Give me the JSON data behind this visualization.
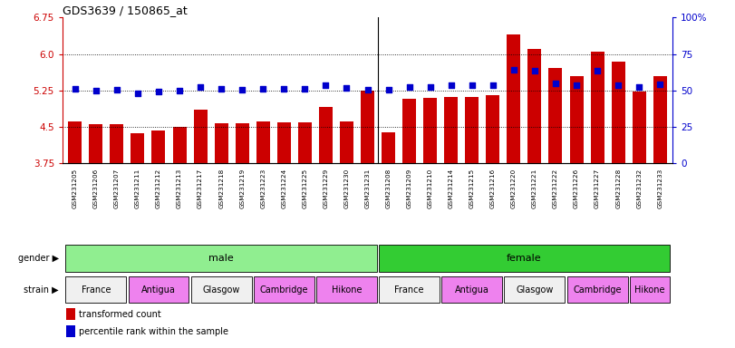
{
  "title": "GDS3639 / 150865_at",
  "samples": [
    "GSM231205",
    "GSM231206",
    "GSM231207",
    "GSM231211",
    "GSM231212",
    "GSM231213",
    "GSM231217",
    "GSM231218",
    "GSM231219",
    "GSM231223",
    "GSM231224",
    "GSM231225",
    "GSM231229",
    "GSM231230",
    "GSM231231",
    "GSM231208",
    "GSM231209",
    "GSM231210",
    "GSM231214",
    "GSM231215",
    "GSM231216",
    "GSM231220",
    "GSM231221",
    "GSM231222",
    "GSM231226",
    "GSM231227",
    "GSM231228",
    "GSM231232",
    "GSM231233"
  ],
  "bar_values": [
    4.62,
    4.55,
    4.55,
    4.38,
    4.42,
    4.5,
    4.85,
    4.58,
    4.57,
    4.62,
    4.6,
    4.6,
    4.92,
    4.62,
    5.25,
    4.4,
    5.08,
    5.1,
    5.12,
    5.12,
    5.15,
    6.4,
    6.1,
    5.72,
    5.55,
    6.05,
    5.85,
    5.22,
    5.55
  ],
  "dot_values": [
    5.28,
    5.25,
    5.27,
    5.19,
    5.23,
    5.25,
    5.33,
    5.28,
    5.27,
    5.29,
    5.29,
    5.28,
    5.35,
    5.3,
    5.27,
    5.27,
    5.32,
    5.33,
    5.35,
    5.35,
    5.36,
    5.67,
    5.65,
    5.4,
    5.35,
    5.65,
    5.35,
    5.33,
    5.37
  ],
  "gender_groups": [
    {
      "label": "male",
      "start": 0,
      "end": 14,
      "color": "#90ee90"
    },
    {
      "label": "female",
      "start": 15,
      "end": 28,
      "color": "#33cc33"
    }
  ],
  "strain_groups": [
    {
      "label": "France",
      "start": 0,
      "end": 2,
      "color": "#f0f0f0"
    },
    {
      "label": "Antigua",
      "start": 3,
      "end": 5,
      "color": "#ee82ee"
    },
    {
      "label": "Glasgow",
      "start": 6,
      "end": 8,
      "color": "#f0f0f0"
    },
    {
      "label": "Cambridge",
      "start": 9,
      "end": 11,
      "color": "#ee82ee"
    },
    {
      "label": "Hikone",
      "start": 12,
      "end": 14,
      "color": "#ee82ee"
    },
    {
      "label": "France",
      "start": 15,
      "end": 17,
      "color": "#f0f0f0"
    },
    {
      "label": "Antigua",
      "start": 18,
      "end": 20,
      "color": "#ee82ee"
    },
    {
      "label": "Glasgow",
      "start": 21,
      "end": 23,
      "color": "#f0f0f0"
    },
    {
      "label": "Cambridge",
      "start": 24,
      "end": 26,
      "color": "#ee82ee"
    },
    {
      "label": "Hikone",
      "start": 27,
      "end": 28,
      "color": "#ee82ee"
    }
  ],
  "bar_color": "#cc0000",
  "dot_color": "#0000cc",
  "ylim_left": [
    3.75,
    6.75
  ],
  "ylim_right": [
    0,
    100
  ],
  "yticks_left": [
    3.75,
    4.5,
    5.25,
    6.0,
    6.75
  ],
  "yticks_right": [
    0,
    25,
    50,
    75,
    100
  ],
  "ytick_labels_right": [
    "0",
    "25",
    "50",
    "75",
    "100%"
  ],
  "grid_values": [
    4.5,
    5.25,
    6.0
  ],
  "left_axis_color": "#cc0000",
  "right_axis_color": "#0000cc"
}
